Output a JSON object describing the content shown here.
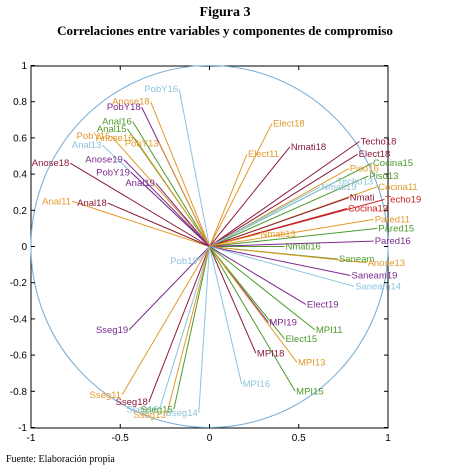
{
  "figure": {
    "title": "Figura 3",
    "subtitle": "Correlaciones entre variables y componentes de compromiso",
    "source": "Fuente: Elaboración propia"
  },
  "chart_data": {
    "type": "biplot",
    "xlim": [
      -1,
      1
    ],
    "ylim": [
      -1,
      1
    ],
    "xticks": [
      -1,
      -0.5,
      0,
      0.5,
      1
    ],
    "xtick_labels": [
      "-1",
      "-0.5",
      "0",
      "0.5",
      "1"
    ],
    "yticks": [
      1,
      0.8,
      0.6,
      0.4,
      0.2,
      0,
      -0.2,
      -0.4,
      -0.6,
      -0.8,
      -1
    ],
    "ytick_labels": [
      "1",
      "0.8",
      "0.6",
      "0.4",
      "0.2",
      "0",
      "-0.2",
      "-0.4",
      "-0.6",
      "-0.8",
      "-1"
    ],
    "unit_circle": true,
    "colors": {
      "circle": "#7fb2d8",
      "purple": "#7b2a8c",
      "maroon": "#8b1a3a",
      "orange": "#e39a2a",
      "green": "#4d9a2a",
      "lightblue": "#8cc4de",
      "red": "#c82020"
    },
    "vectors": [
      {
        "label": "PobY16",
        "x": -0.17,
        "y": 0.87,
        "color": "lightblue"
      },
      {
        "label": "Anose18",
        "x": -0.33,
        "y": 0.8,
        "color": "orange"
      },
      {
        "label": "PobY18",
        "x": -0.38,
        "y": 0.77,
        "color": "purple"
      },
      {
        "label": "Anal16",
        "x": -0.43,
        "y": 0.69,
        "color": "green"
      },
      {
        "label": "Anal15",
        "x": -0.46,
        "y": 0.65,
        "color": "green"
      },
      {
        "label": "Anose16",
        "x": -0.42,
        "y": 0.6,
        "color": "orange"
      },
      {
        "label": "PobY13",
        "x": -0.28,
        "y": 0.57,
        "color": "orange"
      },
      {
        "label": "PobY15",
        "x": -0.55,
        "y": 0.61,
        "color": "orange"
      },
      {
        "label": "Anal13",
        "x": -0.6,
        "y": 0.56,
        "color": "lightblue"
      },
      {
        "label": "Anose19",
        "x": -0.48,
        "y": 0.48,
        "color": "purple"
      },
      {
        "label": "Anose18",
        "x": -0.78,
        "y": 0.46,
        "color": "maroon"
      },
      {
        "label": "PobY19",
        "x": -0.44,
        "y": 0.41,
        "color": "purple"
      },
      {
        "label": "Anal19",
        "x": -0.3,
        "y": 0.35,
        "color": "purple"
      },
      {
        "label": "Anal11",
        "x": -0.77,
        "y": 0.25,
        "color": "orange"
      },
      {
        "label": "Anal18",
        "x": -0.57,
        "y": 0.24,
        "color": "maroon"
      },
      {
        "label": "Elect18",
        "x": 0.35,
        "y": 0.68,
        "color": "orange"
      },
      {
        "label": "Nmati18",
        "x": 0.45,
        "y": 0.55,
        "color": "maroon"
      },
      {
        "label": "Elect11",
        "x": 0.21,
        "y": 0.51,
        "color": "orange"
      },
      {
        "label": "Techo18",
        "x": 0.84,
        "y": 0.58,
        "color": "maroon"
      },
      {
        "label": "Elect18",
        "x": 0.83,
        "y": 0.51,
        "color": "maroon"
      },
      {
        "label": "Cocina15",
        "x": 0.91,
        "y": 0.46,
        "color": "green"
      },
      {
        "label": "Piso16",
        "x": 0.78,
        "y": 0.43,
        "color": "orange"
      },
      {
        "label": "Piso13",
        "x": 0.89,
        "y": 0.39,
        "color": "green"
      },
      {
        "label": "Techo13",
        "x": 0.71,
        "y": 0.36,
        "color": "lightblue"
      },
      {
        "label": "Cocina11",
        "x": 0.94,
        "y": 0.33,
        "color": "orange"
      },
      {
        "label": "Nmati19",
        "x": 0.62,
        "y": 0.33,
        "color": "lightblue"
      },
      {
        "label": "Nmati",
        "x": 0.78,
        "y": 0.27,
        "color": "maroon"
      },
      {
        "label": "Techo19",
        "x": 0.98,
        "y": 0.26,
        "color": "red"
      },
      {
        "label": "Cocina13",
        "x": 0.77,
        "y": 0.21,
        "color": "red"
      },
      {
        "label": "Pared11",
        "x": 0.92,
        "y": 0.15,
        "color": "orange"
      },
      {
        "label": "Pared15",
        "x": 0.94,
        "y": 0.1,
        "color": "green"
      },
      {
        "label": "Nmati13",
        "x": 0.28,
        "y": 0.07,
        "color": "orange"
      },
      {
        "label": "Nmati16",
        "x": 0.42,
        "y": 0.0,
        "color": "green"
      },
      {
        "label": "Pared16",
        "x": 0.92,
        "y": 0.03,
        "color": "purple"
      },
      {
        "label": "Saneam",
        "x": 0.72,
        "y": -0.07,
        "color": "green"
      },
      {
        "label": "Anose13",
        "x": 0.88,
        "y": -0.09,
        "color": "orange"
      },
      {
        "label": "Saneam19",
        "x": 0.79,
        "y": -0.16,
        "color": "purple"
      },
      {
        "label": "Saneam14",
        "x": 0.81,
        "y": -0.22,
        "color": "lightblue"
      },
      {
        "label": "Elect19",
        "x": 0.54,
        "y": -0.32,
        "color": "purple"
      },
      {
        "label": "MPI19",
        "x": 0.33,
        "y": -0.42,
        "color": "purple"
      },
      {
        "label": "MPI11",
        "x": 0.59,
        "y": -0.46,
        "color": "green"
      },
      {
        "label": "Elect15",
        "x": 0.42,
        "y": -0.51,
        "color": "green"
      },
      {
        "label": "MPI18",
        "x": 0.26,
        "y": -0.59,
        "color": "maroon"
      },
      {
        "label": "MPI13",
        "x": 0.49,
        "y": -0.64,
        "color": "orange"
      },
      {
        "label": "MPI16",
        "x": 0.18,
        "y": -0.76,
        "color": "lightblue"
      },
      {
        "label": "MPI15",
        "x": 0.48,
        "y": -0.8,
        "color": "green"
      },
      {
        "label": "Sseg19",
        "x": -0.45,
        "y": -0.46,
        "color": "purple"
      },
      {
        "label": "Sseg11",
        "x": -0.49,
        "y": -0.82,
        "color": "orange"
      },
      {
        "label": "Sseg18",
        "x": -0.34,
        "y": -0.86,
        "color": "maroon"
      },
      {
        "label": "Sseg16",
        "x": -0.28,
        "y": -0.9,
        "color": "lightblue"
      },
      {
        "label": "Sseg15",
        "x": -0.2,
        "y": -0.9,
        "color": "green"
      },
      {
        "label": "Sseg14",
        "x": -0.06,
        "y": -0.92,
        "color": "lightblue"
      },
      {
        "label": "Sseg13",
        "x": -0.24,
        "y": -0.93,
        "color": "orange"
      },
      {
        "label": "Pob19",
        "x": -0.06,
        "y": -0.08,
        "color": "lightblue"
      }
    ]
  }
}
